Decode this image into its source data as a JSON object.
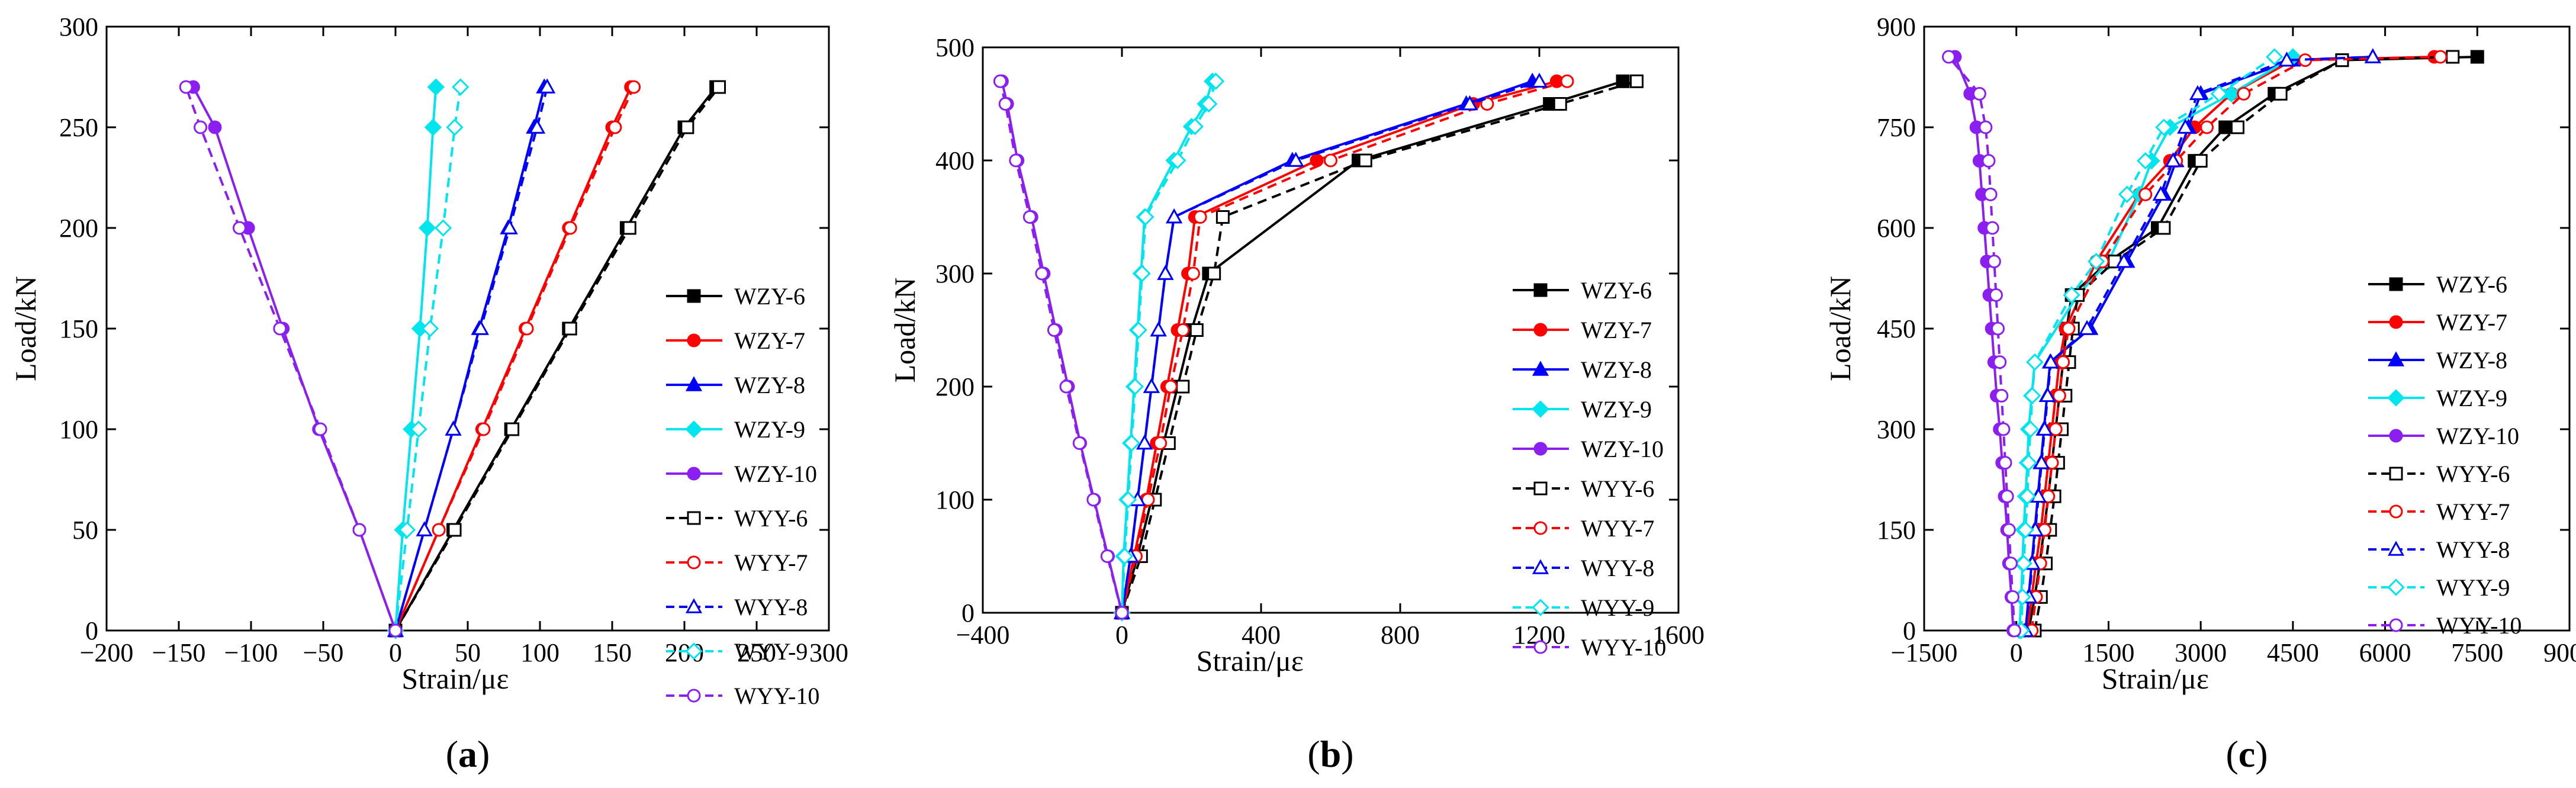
{
  "chart_data": [
    {
      "type": "line",
      "panel_label": "a",
      "xlabel": "Strain/με",
      "ylabel": "Load/kN",
      "xlim": [
        -200,
        300
      ],
      "ylim": [
        0,
        300
      ],
      "xticks": [
        -200,
        -150,
        -100,
        -50,
        0,
        50,
        100,
        150,
        200,
        250,
        300
      ],
      "yticks": [
        0,
        50,
        100,
        150,
        200,
        250,
        300
      ],
      "series": [
        {
          "name": "WZY-6",
          "color": "#000000",
          "dash": false,
          "marker": "square-filled",
          "x": [
            0,
            40,
            80,
            120,
            160,
            200,
            222
          ],
          "y": [
            0,
            50,
            100,
            150,
            200,
            250,
            270
          ]
        },
        {
          "name": "WZY-7",
          "color": "#ff0000",
          "dash": false,
          "marker": "circle-filled",
          "x": [
            0,
            30,
            60,
            90,
            120,
            150,
            163
          ],
          "y": [
            0,
            50,
            100,
            150,
            200,
            250,
            270
          ]
        },
        {
          "name": "WZY-8",
          "color": "#0000ff",
          "dash": false,
          "marker": "triangle-filled",
          "x": [
            0,
            20,
            40,
            58,
            78,
            96,
            103
          ],
          "y": [
            0,
            50,
            100,
            150,
            200,
            250,
            270
          ]
        },
        {
          "name": "WZY-9",
          "color": "#00e5ee",
          "dash": false,
          "marker": "diamond-filled",
          "x": [
            0,
            5,
            11,
            17,
            22,
            26,
            28
          ],
          "y": [
            0,
            50,
            100,
            150,
            200,
            250,
            270
          ]
        },
        {
          "name": "WZY-10",
          "color": "#8b1ff0",
          "dash": false,
          "marker": "circle-filled",
          "x": [
            0,
            -25,
            -53,
            -78,
            -102,
            -125,
            -140
          ],
          "y": [
            0,
            50,
            100,
            150,
            200,
            250,
            270
          ]
        },
        {
          "name": "WYY-6",
          "color": "#000000",
          "dash": true,
          "marker": "square-open",
          "x": [
            0,
            41,
            81,
            121,
            162,
            202,
            224
          ],
          "y": [
            0,
            50,
            100,
            150,
            200,
            250,
            270
          ]
        },
        {
          "name": "WYY-7",
          "color": "#ff0000",
          "dash": true,
          "marker": "circle-open",
          "x": [
            0,
            30,
            61,
            91,
            121,
            152,
            165
          ],
          "y": [
            0,
            50,
            100,
            150,
            200,
            250,
            270
          ]
        },
        {
          "name": "WYY-8",
          "color": "#0000ff",
          "dash": true,
          "marker": "triangle-open",
          "x": [
            0,
            20,
            40,
            59,
            79,
            98,
            105
          ],
          "y": [
            0,
            50,
            100,
            150,
            200,
            250,
            270
          ]
        },
        {
          "name": "WYY-9",
          "color": "#00e5ee",
          "dash": true,
          "marker": "diamond-open",
          "x": [
            0,
            8,
            16,
            24,
            33,
            41,
            45
          ],
          "y": [
            0,
            50,
            100,
            150,
            200,
            250,
            270
          ]
        },
        {
          "name": "WYY-10",
          "color": "#8b1ff0",
          "dash": true,
          "marker": "circle-open",
          "x": [
            0,
            -25,
            -52,
            -80,
            -108,
            -135,
            -145
          ],
          "y": [
            0,
            50,
            100,
            150,
            200,
            250,
            270
          ]
        }
      ]
    },
    {
      "type": "line",
      "panel_label": "b",
      "xlabel": "Strain/με",
      "ylabel": "Load/kN",
      "xlim": [
        -400,
        1600
      ],
      "ylim": [
        0,
        500
      ],
      "xticks": [
        -400,
        0,
        400,
        800,
        1200,
        1600
      ],
      "yticks": [
        0,
        100,
        200,
        300,
        400,
        500
      ],
      "series": [
        {
          "name": "WZY-6",
          "color": "#000000",
          "dash": false,
          "marker": "square-filled",
          "x": [
            0,
            45,
            85,
            120,
            160,
            200,
            250,
            680,
            1230,
            1440
          ],
          "y": [
            0,
            50,
            100,
            150,
            200,
            250,
            300,
            400,
            450,
            470
          ]
        },
        {
          "name": "WZY-7",
          "color": "#ff0000",
          "dash": false,
          "marker": "circle-filled",
          "x": [
            0,
            35,
            70,
            100,
            130,
            160,
            190,
            210,
            560,
            1010,
            1250
          ],
          "y": [
            0,
            50,
            100,
            150,
            200,
            250,
            300,
            350,
            400,
            450,
            470
          ]
        },
        {
          "name": "WZY-8",
          "color": "#0000ff",
          "dash": false,
          "marker": "triangle-filled",
          "x": [
            0,
            25,
            45,
            65,
            85,
            105,
            125,
            150,
            490,
            990,
            1180
          ],
          "y": [
            0,
            50,
            100,
            150,
            200,
            250,
            300,
            350,
            400,
            450,
            470
          ]
        },
        {
          "name": "WZY-9",
          "color": "#00e5ee",
          "dash": false,
          "marker": "diamond-filled",
          "x": [
            0,
            5,
            15,
            25,
            35,
            45,
            55,
            65,
            150,
            200,
            240,
            260
          ],
          "y": [
            0,
            50,
            100,
            150,
            200,
            250,
            300,
            350,
            400,
            430,
            450,
            470
          ]
        },
        {
          "name": "WZY-10",
          "color": "#8b1ff0",
          "dash": false,
          "marker": "circle-filled",
          "x": [
            0,
            -40,
            -80,
            -120,
            -155,
            -190,
            -225,
            -260,
            -300,
            -330,
            -345
          ],
          "y": [
            0,
            50,
            100,
            150,
            200,
            250,
            300,
            350,
            400,
            450,
            470
          ]
        },
        {
          "name": "WYY-6",
          "color": "#000000",
          "dash": true,
          "marker": "square-open",
          "x": [
            0,
            55,
            95,
            135,
            175,
            215,
            265,
            290,
            700,
            1260,
            1480
          ],
          "y": [
            0,
            50,
            100,
            150,
            200,
            250,
            300,
            350,
            400,
            450,
            470
          ]
        },
        {
          "name": "WYY-7",
          "color": "#ff0000",
          "dash": true,
          "marker": "circle-open",
          "x": [
            0,
            40,
            75,
            110,
            140,
            175,
            205,
            225,
            600,
            1050,
            1280
          ],
          "y": [
            0,
            50,
            100,
            150,
            200,
            250,
            300,
            350,
            400,
            450,
            470
          ]
        },
        {
          "name": "WYY-8",
          "color": "#0000ff",
          "dash": true,
          "marker": "triangle-open",
          "x": [
            0,
            25,
            45,
            65,
            85,
            105,
            125,
            150,
            500,
            1000,
            1200
          ],
          "y": [
            0,
            50,
            100,
            150,
            200,
            250,
            300,
            350,
            400,
            450,
            470
          ]
        },
        {
          "name": "WYY-9",
          "color": "#00e5ee",
          "dash": true,
          "marker": "diamond-open",
          "x": [
            0,
            8,
            18,
            28,
            38,
            48,
            58,
            68,
            160,
            210,
            250,
            270
          ],
          "y": [
            0,
            50,
            100,
            150,
            200,
            250,
            300,
            350,
            400,
            430,
            450,
            470
          ]
        },
        {
          "name": "WYY-10",
          "color": "#8b1ff0",
          "dash": true,
          "marker": "circle-open",
          "x": [
            0,
            -42,
            -82,
            -122,
            -160,
            -195,
            -230,
            -265,
            -305,
            -335,
            -350
          ],
          "y": [
            0,
            50,
            100,
            150,
            200,
            250,
            300,
            350,
            400,
            450,
            470
          ]
        }
      ]
    },
    {
      "type": "line",
      "panel_label": "c",
      "xlabel": "Strain/με",
      "ylabel": "Load/kN",
      "xlim": [
        -1500,
        9000
      ],
      "ylim": [
        0,
        900
      ],
      "xticks": [
        -1500,
        0,
        1500,
        3000,
        4500,
        6000,
        7500,
        9000
      ],
      "yticks": [
        0,
        150,
        300,
        450,
        600,
        750,
        900
      ],
      "series": [
        {
          "name": "WZY-6",
          "color": "#000000",
          "dash": false,
          "marker": "square-filled",
          "x": [
            200,
            300,
            380,
            450,
            520,
            580,
            640,
            700,
            760,
            820,
            900,
            1500,
            2300,
            2900,
            3400,
            4200,
            5300,
            7500
          ],
          "y": [
            0,
            50,
            100,
            150,
            200,
            250,
            300,
            350,
            400,
            450,
            500,
            550,
            600,
            700,
            750,
            800,
            850,
            855
          ]
        },
        {
          "name": "WZY-7",
          "color": "#ff0000",
          "dash": false,
          "marker": "circle-filled",
          "x": [
            180,
            250,
            320,
            400,
            460,
            520,
            580,
            640,
            700,
            800,
            1300,
            2000,
            2500,
            2900,
            3500,
            4500,
            6800
          ],
          "y": [
            0,
            50,
            100,
            150,
            200,
            250,
            300,
            350,
            400,
            450,
            550,
            650,
            700,
            750,
            800,
            850,
            855
          ]
        },
        {
          "name": "WZY-8",
          "color": "#0000ff",
          "dash": false,
          "marker": "triangle-filled",
          "x": [
            150,
            200,
            250,
            300,
            350,
            400,
            450,
            500,
            550,
            1200,
            1800,
            2400,
            2600,
            2800,
            3000,
            4500,
            5800
          ],
          "y": [
            0,
            50,
            100,
            150,
            200,
            250,
            300,
            350,
            400,
            450,
            550,
            650,
            700,
            750,
            800,
            850,
            855
          ]
        },
        {
          "name": "WZY-9",
          "color": "#00e5ee",
          "dash": false,
          "marker": "diamond-filled",
          "x": [
            50,
            80,
            100,
            120,
            150,
            180,
            200,
            250,
            300,
            1000,
            1500,
            2000,
            2200,
            2500,
            3500,
            4500
          ],
          "y": [
            0,
            50,
            100,
            150,
            200,
            250,
            300,
            350,
            400,
            500,
            550,
            650,
            700,
            750,
            800,
            855
          ]
        },
        {
          "name": "WZY-10",
          "color": "#8b1ff0",
          "dash": false,
          "marker": "circle-filled",
          "x": [
            -50,
            -80,
            -120,
            -150,
            -190,
            -230,
            -270,
            -320,
            -360,
            -400,
            -440,
            -480,
            -520,
            -560,
            -600,
            -650,
            -750,
            -1000
          ],
          "y": [
            0,
            50,
            100,
            150,
            200,
            250,
            300,
            350,
            400,
            450,
            500,
            550,
            600,
            650,
            700,
            750,
            800,
            855
          ]
        },
        {
          "name": "WYY-6",
          "color": "#000000",
          "dash": true,
          "marker": "square-open",
          "x": [
            300,
            400,
            480,
            550,
            620,
            680,
            740,
            800,
            860,
            920,
            1000,
            1600,
            2400,
            3000,
            3600,
            4300,
            5300,
            7100
          ],
          "y": [
            0,
            50,
            100,
            150,
            200,
            250,
            300,
            350,
            400,
            450,
            500,
            550,
            600,
            700,
            750,
            800,
            850,
            855
          ]
        },
        {
          "name": "WYY-7",
          "color": "#ff0000",
          "dash": true,
          "marker": "circle-open",
          "x": [
            250,
            320,
            390,
            460,
            520,
            580,
            640,
            700,
            760,
            850,
            1400,
            2100,
            2600,
            3100,
            3700,
            4700,
            6900
          ],
          "y": [
            0,
            50,
            100,
            150,
            200,
            250,
            300,
            350,
            400,
            450,
            550,
            650,
            700,
            750,
            800,
            850,
            855
          ]
        },
        {
          "name": "WYY-8",
          "color": "#0000ff",
          "dash": true,
          "marker": "triangle-open",
          "x": [
            150,
            210,
            260,
            310,
            360,
            410,
            460,
            510,
            560,
            1150,
            1750,
            2350,
            2550,
            2750,
            2950,
            4400,
            5800
          ],
          "y": [
            0,
            50,
            100,
            150,
            200,
            250,
            300,
            350,
            400,
            450,
            550,
            650,
            700,
            750,
            800,
            850,
            855
          ]
        },
        {
          "name": "WYY-9",
          "color": "#00e5ee",
          "dash": true,
          "marker": "diamond-open",
          "x": [
            80,
            100,
            120,
            150,
            180,
            200,
            230,
            260,
            300,
            900,
            1300,
            1800,
            2100,
            2400,
            3300,
            4200
          ],
          "y": [
            0,
            50,
            100,
            150,
            200,
            250,
            300,
            350,
            400,
            500,
            550,
            650,
            700,
            750,
            800,
            855
          ]
        },
        {
          "name": "WYY-10",
          "color": "#8b1ff0",
          "dash": true,
          "marker": "circle-open",
          "x": [
            -30,
            -60,
            -90,
            -120,
            -150,
            -180,
            -210,
            -240,
            -270,
            -300,
            -330,
            -360,
            -390,
            -420,
            -450,
            -500,
            -600,
            -1100
          ],
          "y": [
            0,
            50,
            100,
            150,
            200,
            250,
            300,
            350,
            400,
            450,
            500,
            550,
            600,
            650,
            700,
            750,
            800,
            855
          ]
        }
      ]
    }
  ]
}
